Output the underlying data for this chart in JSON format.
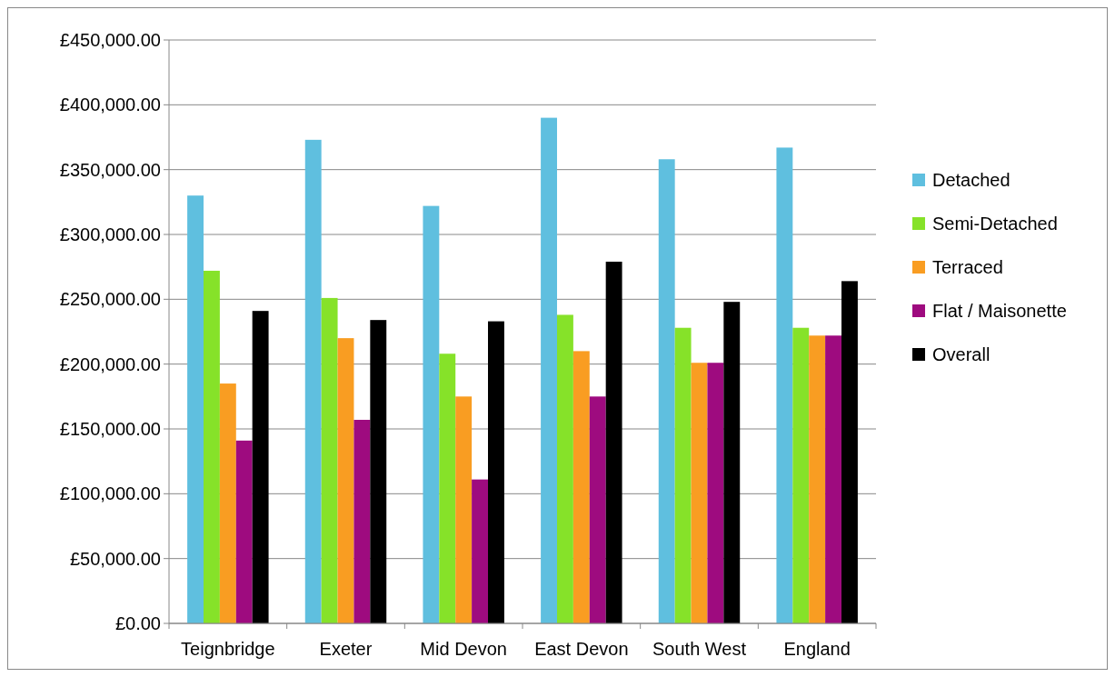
{
  "chart_data": {
    "type": "bar",
    "categories": [
      "Teignbridge",
      "Exeter",
      "Mid Devon",
      "East Devon",
      "South West",
      "England"
    ],
    "series": [
      {
        "name": "Detached",
        "color": "#5fbfdf",
        "values": [
          330000,
          373000,
          322000,
          390000,
          358000,
          367000
        ]
      },
      {
        "name": "Semi-Detached",
        "color": "#86e229",
        "values": [
          272000,
          251000,
          208000,
          238000,
          228000,
          228000
        ]
      },
      {
        "name": "Terraced",
        "color": "#f99d22",
        "values": [
          185000,
          220000,
          175000,
          210000,
          201000,
          222000
        ]
      },
      {
        "name": "Flat / Maisonette",
        "color": "#9e0b7f",
        "values": [
          141000,
          157000,
          111000,
          175000,
          201000,
          222000
        ]
      },
      {
        "name": "Overall",
        "color": "#000000",
        "values": [
          241000,
          234000,
          233000,
          279000,
          248000,
          264000
        ]
      }
    ],
    "ylim": [
      0,
      450000
    ],
    "yticks": [
      {
        "value": 0,
        "label": "£0.00"
      },
      {
        "value": 50000,
        "label": "£50,000.00"
      },
      {
        "value": 100000,
        "label": "£100,000.00"
      },
      {
        "value": 150000,
        "label": "£150,000.00"
      },
      {
        "value": 200000,
        "label": "£200,000.00"
      },
      {
        "value": 250000,
        "label": "£250,000.00"
      },
      {
        "value": 300000,
        "label": "£300,000.00"
      },
      {
        "value": 350000,
        "label": "£350,000.00"
      },
      {
        "value": 400000,
        "label": "£400,000.00"
      },
      {
        "value": 450000,
        "label": "£450,000.00"
      }
    ],
    "grid": "y",
    "legend": "right"
  }
}
